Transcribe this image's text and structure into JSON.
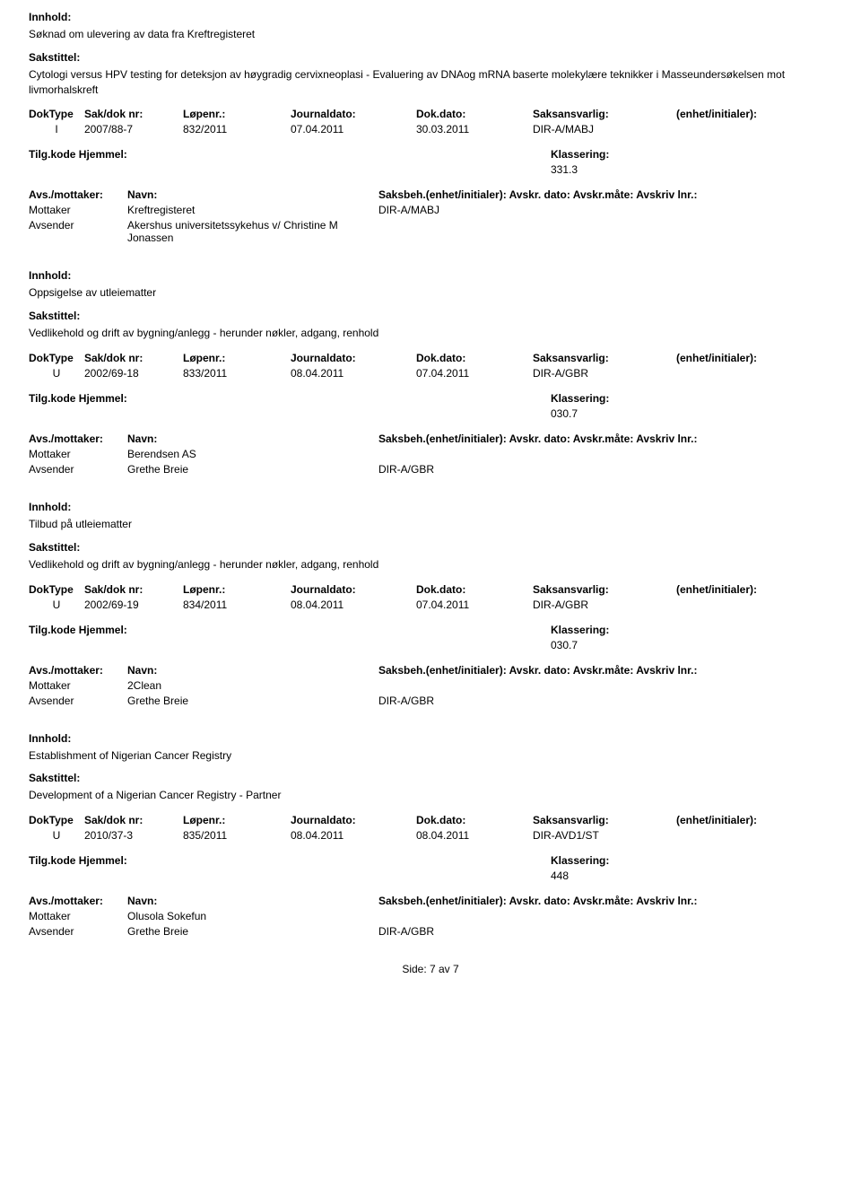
{
  "labels": {
    "innhold": "Innhold:",
    "sakstittel": "Sakstittel:",
    "doktype": "DokType",
    "sakdok": "Sak/dok nr:",
    "lopenr": "Løpenr.:",
    "journaldato": "Journaldato:",
    "dokdato": "Dok.dato:",
    "saksansvarlig": "Saksansvarlig:",
    "enhet": "(enhet/initialer):",
    "tilgkode": "Tilg.kode Hjemmel:",
    "klassering": "Klassering:",
    "avsmottaker": "Avs./mottaker:",
    "navn": "Navn:",
    "saksbeh_line": "Saksbeh.(enhet/initialer): Avskr. dato:  Avskr.måte:  Avskriv lnr.:",
    "mottaker": "Mottaker",
    "avsender": "Avsender"
  },
  "entries": [
    {
      "innhold": "Søknad om ulevering av data fra Kreftregisteret",
      "sakstittel": "Cytologi versus HPV testing for deteksjon av høygradig cervixneoplasi - Evaluering av DNAog mRNA baserte molekylære teknikker i Masseundersøkelsen mot livmorhalskreft",
      "doktype": "I",
      "sakdok": "2007/88-7",
      "lopenr": "832/2011",
      "journaldato": "07.04.2011",
      "dokdato": "30.03.2011",
      "saksansvarlig": "DIR-A/MABJ",
      "klassering": "331.3",
      "mottaker_navn": "Kreftregisteret",
      "mottaker_saksbeh": "DIR-A/MABJ",
      "avsender_navn": "Akershus universitetssykehus v/ Christine M Jonassen",
      "avsender_saksbeh": ""
    },
    {
      "innhold": "Oppsigelse av utleiematter",
      "sakstittel": "Vedlikehold og drift av bygning/anlegg - herunder nøkler, adgang, renhold",
      "doktype": "U",
      "sakdok": "2002/69-18",
      "lopenr": "833/2011",
      "journaldato": "08.04.2011",
      "dokdato": "07.04.2011",
      "saksansvarlig": "DIR-A/GBR",
      "klassering": "030.7",
      "mottaker_navn": "Berendsen AS",
      "mottaker_saksbeh": "",
      "avsender_navn": "Grethe Breie",
      "avsender_saksbeh": "DIR-A/GBR"
    },
    {
      "innhold": "Tilbud på utleiematter",
      "sakstittel": "Vedlikehold og drift av bygning/anlegg - herunder nøkler, adgang, renhold",
      "doktype": "U",
      "sakdok": "2002/69-19",
      "lopenr": "834/2011",
      "journaldato": "08.04.2011",
      "dokdato": "07.04.2011",
      "saksansvarlig": "DIR-A/GBR",
      "klassering": "030.7",
      "mottaker_navn": "2Clean",
      "mottaker_saksbeh": "",
      "avsender_navn": "Grethe Breie",
      "avsender_saksbeh": "DIR-A/GBR"
    },
    {
      "innhold": "Establishment of Nigerian Cancer Registry",
      "sakstittel": "Development of a Nigerian Cancer Registry - Partner",
      "doktype": "U",
      "sakdok": "2010/37-3",
      "lopenr": "835/2011",
      "journaldato": "08.04.2011",
      "dokdato": "08.04.2011",
      "saksansvarlig": "DIR-AVD1/ST",
      "klassering": "448",
      "mottaker_navn": "Olusola Sokefun",
      "mottaker_saksbeh": "",
      "avsender_navn": "Grethe Breie",
      "avsender_saksbeh": "DIR-A/GBR"
    }
  ],
  "footer": "Side: 7 av 7"
}
